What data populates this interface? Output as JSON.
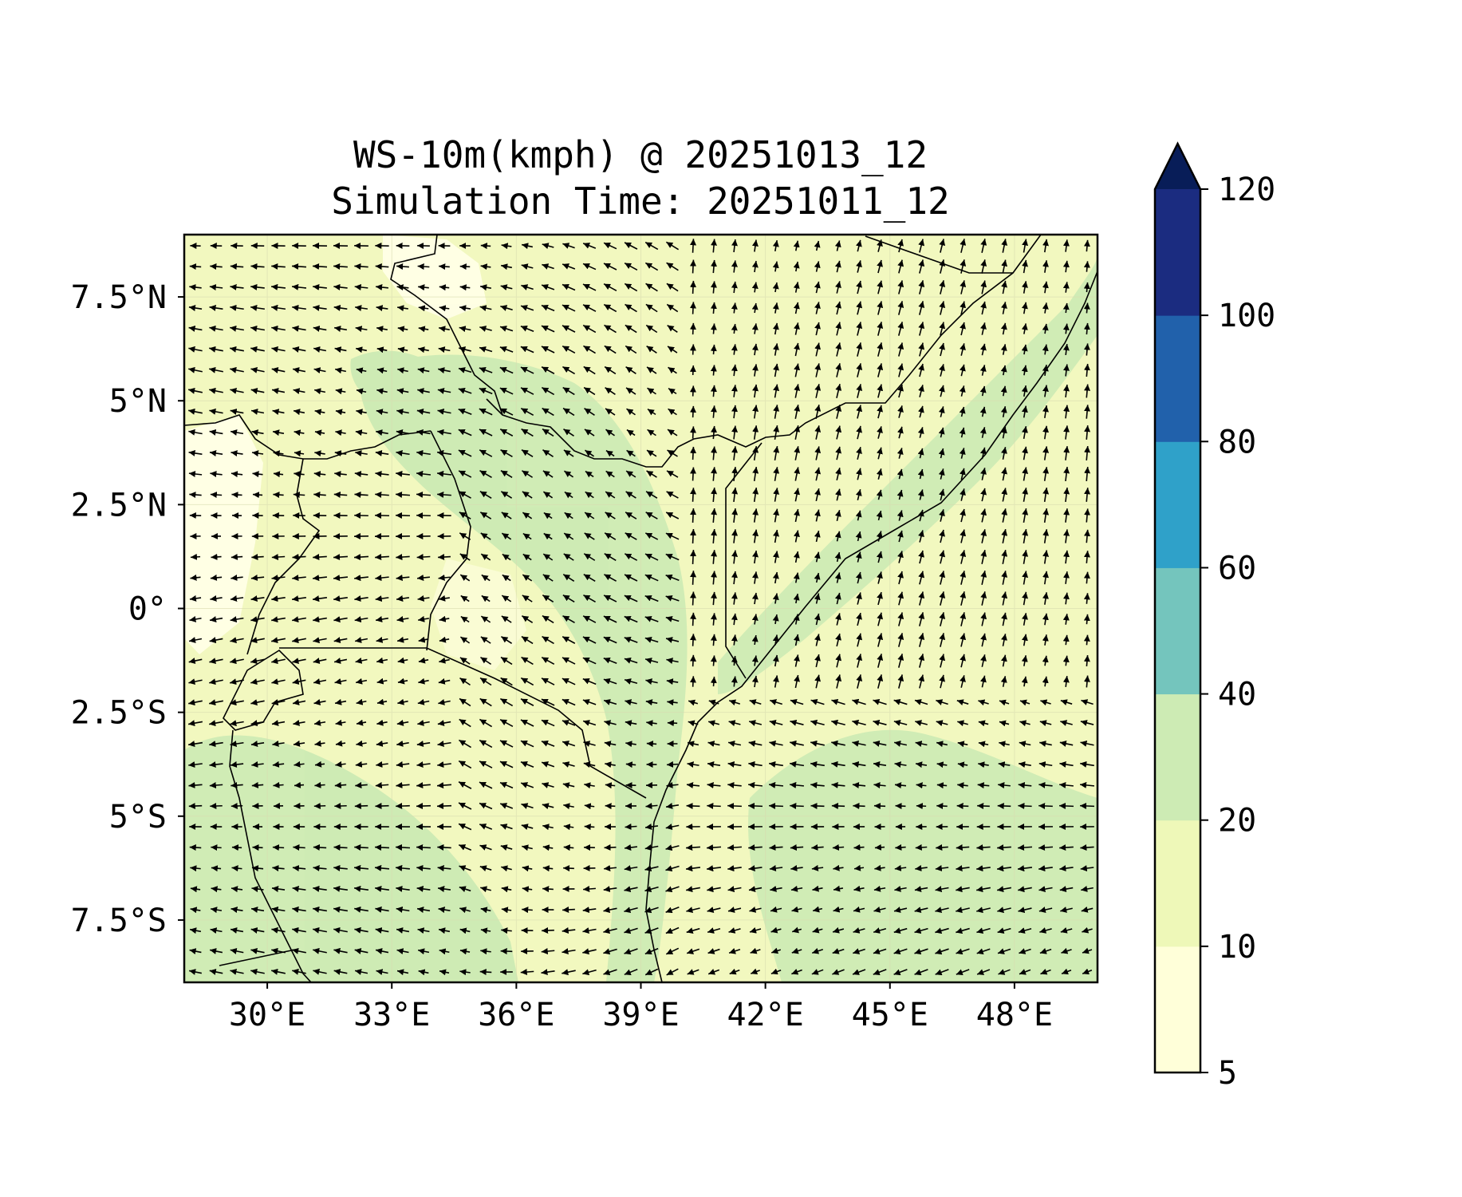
{
  "title": {
    "line1": "WS-10m(kmph) @ 20251013_12",
    "line2": "Simulation Time: 20251011_12"
  },
  "map": {
    "lon_range": [
      28,
      50
    ],
    "lat_range": [
      -9,
      9
    ],
    "x_ticks": [
      {
        "value": 30,
        "label": "30°E"
      },
      {
        "value": 33,
        "label": "33°E"
      },
      {
        "value": 36,
        "label": "36°E"
      },
      {
        "value": 39,
        "label": "39°E"
      },
      {
        "value": 42,
        "label": "42°E"
      },
      {
        "value": 45,
        "label": "45°E"
      },
      {
        "value": 48,
        "label": "48°E"
      }
    ],
    "y_ticks": [
      {
        "value": 7.5,
        "label": "7.5°N"
      },
      {
        "value": 5,
        "label": "5°N"
      },
      {
        "value": 2.5,
        "label": "2.5°N"
      },
      {
        "value": 0,
        "label": "0°"
      },
      {
        "value": -2.5,
        "label": "2.5°S"
      },
      {
        "value": -5,
        "label": "5°S"
      },
      {
        "value": -7.5,
        "label": "7.5°S"
      }
    ],
    "background_color": "#f2f8bf",
    "coastline_color": "#000000"
  },
  "colorbar": {
    "levels": [
      5,
      10,
      20,
      40,
      60,
      80,
      100,
      120
    ],
    "colors": [
      "#ffffd9",
      "#eef8b8",
      "#cdebb4",
      "#74c5bd",
      "#2fa1c9",
      "#2161ab",
      "#1b2c80"
    ],
    "extend_color": "#081d58",
    "extend": "max"
  }
}
